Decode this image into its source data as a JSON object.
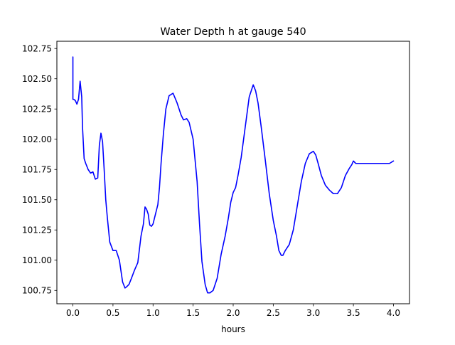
{
  "chart_data": {
    "type": "line",
    "title": "Water Depth h at gauge 540",
    "xlabel": "hours",
    "ylabel": "",
    "xlim": [
      -0.2,
      4.2
    ],
    "ylim": [
      100.64,
      102.81
    ],
    "xticks": [
      0.0,
      0.5,
      1.0,
      1.5,
      2.0,
      2.5,
      3.0,
      3.5,
      4.0
    ],
    "xtick_labels": [
      "0.0",
      "0.5",
      "1.0",
      "1.5",
      "2.0",
      "2.5",
      "3.0",
      "3.5",
      "4.0"
    ],
    "yticks": [
      100.75,
      101.0,
      101.25,
      101.5,
      101.75,
      102.0,
      102.25,
      102.5,
      102.75
    ],
    "ytick_labels": [
      "100.75",
      "101.00",
      "101.25",
      "101.50",
      "101.75",
      "102.00",
      "102.25",
      "102.50",
      "102.75"
    ],
    "grid": false,
    "series": [
      {
        "color": "#0000ff",
        "x": [
          0.0,
          0.0,
          0.01,
          0.03,
          0.05,
          0.07,
          0.09,
          0.11,
          0.12,
          0.14,
          0.16,
          0.19,
          0.22,
          0.25,
          0.28,
          0.31,
          0.33,
          0.35,
          0.37,
          0.39,
          0.41,
          0.43,
          0.46,
          0.5,
          0.54,
          0.58,
          0.62,
          0.65,
          0.67,
          0.7,
          0.73,
          0.77,
          0.81,
          0.85,
          0.88,
          0.9,
          0.92,
          0.94,
          0.95,
          0.96,
          0.98,
          1.0,
          1.03,
          1.06,
          1.08,
          1.1,
          1.13,
          1.16,
          1.2,
          1.25,
          1.3,
          1.35,
          1.38,
          1.42,
          1.45,
          1.5,
          1.55,
          1.58,
          1.61,
          1.65,
          1.68,
          1.71,
          1.75,
          1.8,
          1.85,
          1.9,
          1.94,
          1.97,
          2.0,
          2.03,
          2.06,
          2.1,
          2.15,
          2.2,
          2.25,
          2.28,
          2.31,
          2.35,
          2.4,
          2.45,
          2.5,
          2.54,
          2.57,
          2.6,
          2.62,
          2.65,
          2.7,
          2.75,
          2.8,
          2.85,
          2.9,
          2.95,
          3.0,
          3.03,
          3.06,
          3.1,
          3.15,
          3.2,
          3.25,
          3.3,
          3.35,
          3.4,
          3.45,
          3.48,
          3.5,
          3.53,
          3.55,
          3.6,
          3.65,
          3.7,
          3.75,
          3.8,
          3.85,
          3.9,
          3.95,
          4.0
        ],
        "y": [
          102.68,
          102.33,
          102.33,
          102.32,
          102.29,
          102.33,
          102.48,
          102.35,
          102.1,
          101.84,
          101.8,
          101.75,
          101.72,
          101.73,
          101.67,
          101.68,
          101.95,
          102.05,
          101.98,
          101.75,
          101.5,
          101.35,
          101.15,
          101.08,
          101.08,
          101.0,
          100.82,
          100.77,
          100.78,
          100.8,
          100.85,
          100.92,
          100.98,
          101.2,
          101.3,
          101.44,
          101.42,
          101.38,
          101.33,
          101.29,
          101.28,
          101.3,
          101.38,
          101.46,
          101.6,
          101.8,
          102.05,
          102.25,
          102.36,
          102.38,
          102.3,
          102.2,
          102.16,
          102.17,
          102.14,
          102.0,
          101.65,
          101.3,
          100.99,
          100.8,
          100.73,
          100.73,
          100.75,
          100.85,
          101.05,
          101.2,
          101.35,
          101.48,
          101.56,
          101.6,
          101.7,
          101.85,
          102.1,
          102.35,
          102.45,
          102.4,
          102.3,
          102.1,
          101.83,
          101.55,
          101.33,
          101.2,
          101.08,
          101.04,
          101.04,
          101.08,
          101.13,
          101.25,
          101.45,
          101.65,
          101.8,
          101.88,
          101.9,
          101.87,
          101.8,
          101.7,
          101.62,
          101.58,
          101.55,
          101.55,
          101.6,
          101.7,
          101.76,
          101.79,
          101.82,
          101.8,
          101.8,
          101.8,
          101.8,
          101.8,
          101.8,
          101.8,
          101.8,
          101.8,
          101.8,
          101.82
        ]
      }
    ]
  }
}
